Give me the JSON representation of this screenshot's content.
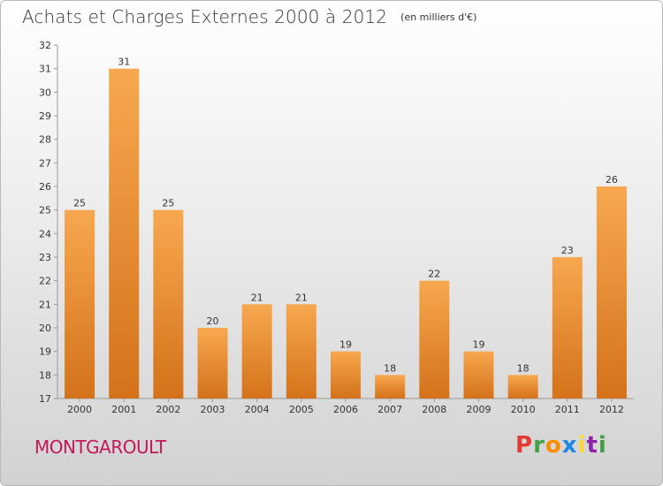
{
  "header": {
    "title": "Achats et Charges Externes 2000 à 2012",
    "unit": "(en milliers d'€)"
  },
  "footer": {
    "city": "MONTGAROULT",
    "brand_letters": [
      "P",
      "r",
      "o",
      "x",
      "i",
      "t",
      "i"
    ],
    "brand_colors": [
      "#e53935",
      "#43a047",
      "#fb8c00",
      "#1e88e5",
      "#fdd835",
      "#8e24aa",
      "#43a047"
    ]
  },
  "colors": {
    "bar_top": "#f7a84f",
    "bar_bottom": "#d4721a",
    "city": "#c2185b"
  },
  "chart_data": {
    "type": "bar",
    "categories": [
      "2000",
      "2001",
      "2002",
      "2003",
      "2004",
      "2005",
      "2006",
      "2007",
      "2008",
      "2009",
      "2010",
      "2011",
      "2012"
    ],
    "values": [
      25,
      31,
      25,
      20,
      21,
      21,
      19,
      18,
      22,
      19,
      18,
      23,
      26
    ],
    "ylim": [
      17,
      32
    ],
    "yticks": [
      17,
      18,
      19,
      20,
      21,
      22,
      23,
      24,
      25,
      26,
      27,
      28,
      29,
      30,
      31,
      32
    ],
    "grid": false,
    "data_labels": true
  }
}
